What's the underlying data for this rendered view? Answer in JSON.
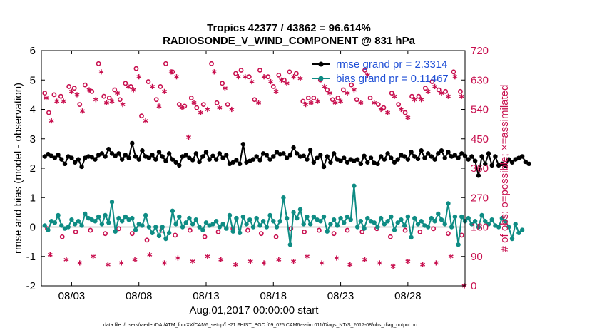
{
  "chart_data": {
    "type": "line",
    "title_line1": "Tropics 42377 / 43862 = 96.614%",
    "title_line2": "RADIOSONDE_V_WIND_COMPONENT @ 831 hPa",
    "ylabel_left": "rmse and bias (model - observation)",
    "ylabel_right": "# of obs: o=possible; ×=assimilated",
    "xlabel": "Aug.01,2017 00:00:00 start",
    "footnote": "data file: /Users/raeder/DAI/ATM_forcXX/CAM6_setup/f.e21.FHIST_BGC.f09_025.CAM6assim.011/Diags_NTrS_2017-08/obs_diag_output.nc",
    "x_range": [
      0.75,
      32.25
    ],
    "ylim_left": [
      -2,
      6
    ],
    "ylim_right": [
      0,
      720
    ],
    "left_ticks": [
      "-2",
      "-1",
      "0",
      "1",
      "2",
      "3",
      "4",
      "5",
      "6"
    ],
    "right_ticks": [
      "0",
      "90",
      "180",
      "270",
      "360",
      "450",
      "540",
      "630",
      "720"
    ],
    "x_ticks": [
      {
        "x": 3,
        "label": "08/03"
      },
      {
        "x": 8,
        "label": "08/08"
      },
      {
        "x": 13,
        "label": "08/13"
      },
      {
        "x": 18,
        "label": "08/18"
      },
      {
        "x": 23,
        "label": "08/23"
      },
      {
        "x": 28,
        "label": "08/28"
      }
    ],
    "legend": [
      {
        "label": "rmse grand pr = 2.3314",
        "color": "#000000"
      },
      {
        "label": "bias grand pr = 0.11467",
        "color": "#0e8c84"
      }
    ],
    "colors": {
      "rmse": "#000000",
      "bias": "#0e8c84",
      "obs": "#c8104f",
      "zero_line": "#a8a8a8"
    },
    "series": [
      {
        "name": "rmse",
        "x_start": 1,
        "x_step": 0.25,
        "values": [
          2.4,
          2.48,
          2.42,
          2.35,
          2.45,
          2.3,
          2.15,
          2.4,
          2.35,
          2.2,
          2.3,
          2.05,
          2.35,
          2.4,
          2.38,
          2.3,
          2.45,
          2.5,
          2.4,
          2.65,
          2.5,
          2.42,
          2.5,
          2.3,
          2.45,
          2.35,
          2.85,
          2.4,
          2.3,
          2.6,
          2.4,
          2.35,
          2.45,
          2.3,
          2.55,
          2.4,
          2.25,
          2.5,
          2.3,
          2.2,
          2.1,
          2.4,
          2.45,
          2.35,
          2.28,
          2.5,
          2.22,
          2.4,
          2.55,
          2.3,
          2.42,
          2.3,
          2.5,
          2.35,
          2.45,
          2.15,
          2.2,
          2.28,
          2.15,
          2.82,
          2.2,
          2.25,
          2.3,
          2.4,
          2.28,
          2.5,
          2.45,
          2.3,
          2.4,
          2.55,
          2.48,
          2.5,
          2.35,
          2.45,
          2.7,
          2.5,
          2.4,
          2.42,
          2.3,
          2.62,
          2.2,
          2.35,
          2.45,
          2.05,
          2.4,
          2.2,
          2.5,
          2.3,
          2.25,
          2.35,
          2.2,
          2.3,
          2.25,
          2.3,
          2.15,
          2.42,
          2.2,
          2.35,
          2.18,
          2.15,
          2.4,
          2.3,
          2.5,
          2.35,
          2.2,
          2.3,
          2.45,
          2.4,
          2.3,
          2.55,
          2.4,
          2.32,
          2.6,
          2.35,
          2.5,
          2.4,
          2.3,
          2.5,
          2.6,
          2.35,
          2.55,
          2.4,
          2.45,
          2.35,
          2.5,
          2.42,
          2.3,
          2.4,
          2.25,
          1.75,
          2.4,
          2.15,
          2.5,
          2.1,
          2.4,
          2.1,
          2.15,
          2.08,
          2.3,
          2.2,
          2.3,
          2.35,
          2.4,
          2.22,
          2.15
        ]
      },
      {
        "name": "bias",
        "x_start": 1,
        "x_step": 0.25,
        "values": [
          0.05,
          -0.1,
          0.2,
          0.15,
          0.4,
          0.05,
          -0.05,
          0.0,
          0.25,
          0.1,
          0.2,
          0.05,
          0.45,
          0.3,
          0.25,
          0.2,
          0.35,
          0.1,
          0.4,
          0.15,
          0.85,
          -0.15,
          0.3,
          0.2,
          0.35,
          0.25,
          0.3,
          -0.1,
          0.1,
          0.05,
          0.4,
          0.0,
          -0.2,
          0.0,
          -0.3,
          0.0,
          -0.4,
          -0.2,
          0.55,
          0.1,
          0.35,
          0.0,
          0.15,
          0.3,
          0.1,
          0.25,
          0.0,
          -0.1,
          0.15,
          0.05,
          0.1,
          0.2,
          0.0,
          0.1,
          -0.05,
          0.4,
          -0.15,
          0.3,
          -0.2,
          0.35,
          0.1,
          0.25,
          0.0,
          0.3,
          0.05,
          0.2,
          0.0,
          0.4,
          0.2,
          0.0,
          0.2,
          1.0,
          0.3,
          -0.6,
          0.5,
          0.3,
          0.6,
          0.1,
          0.35,
          0.1,
          0.35,
          0.25,
          0.2,
          0.35,
          -0.15,
          0.1,
          0.25,
          0.05,
          0.3,
          0.15,
          0.35,
          0.25,
          1.4,
          0.0,
          0.2,
          -0.05,
          0.3,
          0.2,
          0.15,
          0.0,
          0.3,
          0.1,
          0.2,
          0.35,
          -0.1,
          0.15,
          0.25,
          0.05,
          0.35,
          -0.35,
          0.3,
          0.1,
          0.2,
          0.05,
          0.0,
          0.3,
          0.2,
          0.45,
          0.25,
          0.1,
          0.8,
          0.0,
          0.35,
          -0.6,
          0.35,
          0.2,
          0.3,
          0.1,
          0.2,
          0.0,
          0.4,
          0.2,
          0.1,
          0.25,
          0.05,
          0.0,
          0.3,
          0.2,
          0.0,
          -0.4,
          0.1,
          -0.2,
          -0.1
        ]
      },
      {
        "name": "obs_possible",
        "axis": "right",
        "x": [
          1,
          1.3,
          1.7,
          2.2,
          2.8,
          3.2,
          3.6,
          4,
          4.5,
          5,
          5.4,
          5.8,
          6.2,
          6.6,
          7,
          7.4,
          7.8,
          8.2,
          8.7,
          9.3,
          9.6,
          10,
          10.5,
          11,
          11.4,
          11.9,
          12.3,
          12.8,
          13.4,
          13.8,
          14.2,
          14.6,
          15.2,
          15.6,
          16.2,
          16.6,
          17,
          17.6,
          18,
          18.4,
          18.8,
          19.2,
          19.7,
          20.2,
          20.6,
          21,
          21.5,
          22,
          22.4,
          22.8,
          23.2,
          23.8,
          24.2,
          24.8,
          25.2,
          25.8,
          26.2,
          26.8,
          27.3,
          27.8,
          28.3,
          28.8,
          29.3,
          29.8,
          30.3,
          30.8,
          31.4,
          31.9
        ],
        "values": [
          590,
          530,
          585,
          580,
          610,
          605,
          555,
          615,
          595,
          680,
          580,
          575,
          600,
          570,
          620,
          610,
          665,
          520,
          625,
          570,
          610,
          680,
          655,
          555,
          550,
          575,
          545,
          555,
          680,
          560,
          620,
          555,
          650,
          660,
          640,
          570,
          660,
          640,
          610,
          645,
          630,
          655,
          650,
          565,
          575,
          575,
          630,
          600,
          570,
          575,
          600,
          615,
          570,
          660,
          575,
          555,
          545,
          590,
          555,
          530,
          580,
          580,
          605,
          625,
          600,
          595,
          655,
          595
        ]
      },
      {
        "name": "obs_assimilated",
        "axis": "right",
        "x": [
          1.1,
          1.5,
          1.9,
          2.4,
          3,
          3.4,
          3.8,
          4.3,
          4.8,
          5.2,
          5.6,
          6,
          6.4,
          6.8,
          7.2,
          7.6,
          8,
          8.5,
          9,
          9.5,
          9.9,
          10.4,
          10.8,
          11.2,
          11.7,
          12.1,
          12.6,
          13.1,
          13.6,
          14,
          14.4,
          14.9,
          15.4,
          15.9,
          16.4,
          16.9,
          17.3,
          17.8,
          18.2,
          18.6,
          19,
          19.5,
          20,
          20.4,
          20.8,
          21.3,
          21.8,
          22.2,
          22.6,
          23,
          23.5,
          24,
          24.5,
          25,
          25.5,
          26,
          26.5,
          27,
          27.5,
          28,
          28.5,
          29,
          29.5,
          30,
          30.5,
          31,
          31.5,
          32
        ],
        "values": [
          575,
          505,
          565,
          565,
          595,
          585,
          535,
          600,
          570,
          655,
          560,
          565,
          590,
          555,
          610,
          600,
          640,
          505,
          610,
          550,
          595,
          655,
          640,
          545,
          455,
          560,
          530,
          540,
          655,
          545,
          605,
          540,
          640,
          640,
          625,
          560,
          640,
          625,
          595,
          630,
          620,
          640,
          635,
          555,
          560,
          565,
          610,
          590,
          560,
          565,
          590,
          600,
          560,
          645,
          560,
          540,
          530,
          580,
          540,
          515,
          570,
          570,
          595,
          610,
          590,
          580,
          640,
          580
        ]
      },
      {
        "name": "obs_possible_low",
        "axis": "right",
        "x": [
          1.2,
          2.3,
          3.3,
          4.4,
          5.5,
          6.5,
          7.5,
          8.6,
          9.7,
          10.7,
          11.8,
          12.9,
          13.9,
          15.0,
          16.1,
          17.1,
          18.2,
          19.3,
          20.3,
          21.4,
          22.5,
          23.5,
          24.6,
          25.7,
          26.7,
          27.8,
          28.9,
          29.9,
          31.0,
          32.0
        ],
        "values": [
          175,
          150,
          165,
          170,
          160,
          175,
          160,
          140,
          170,
          155,
          170,
          150,
          165,
          175,
          170,
          160,
          150,
          175,
          165,
          170,
          160,
          170,
          165,
          175,
          150,
          170,
          165,
          175,
          160,
          155
        ]
      },
      {
        "name": "obs_assimilated_low",
        "axis": "right",
        "x": [
          1.4,
          2.6,
          3.6,
          4.6,
          5.7,
          6.7,
          7.7,
          8.8,
          9.9,
          10.9,
          12.0,
          13.1,
          14.1,
          15.2,
          16.3,
          17.3,
          18.4,
          19.5,
          20.5,
          21.6,
          22.7,
          23.7,
          24.8,
          25.9,
          26.9,
          28.0,
          29.1,
          30.1,
          31.2,
          32.2
        ],
        "values": [
          95,
          80,
          70,
          90,
          65,
          70,
          80,
          95,
          70,
          85,
          75,
          90,
          80,
          65,
          75,
          70,
          80,
          75,
          90,
          70,
          85,
          65,
          80,
          70,
          60,
          75,
          65,
          70,
          90,
          0
        ]
      }
    ]
  }
}
